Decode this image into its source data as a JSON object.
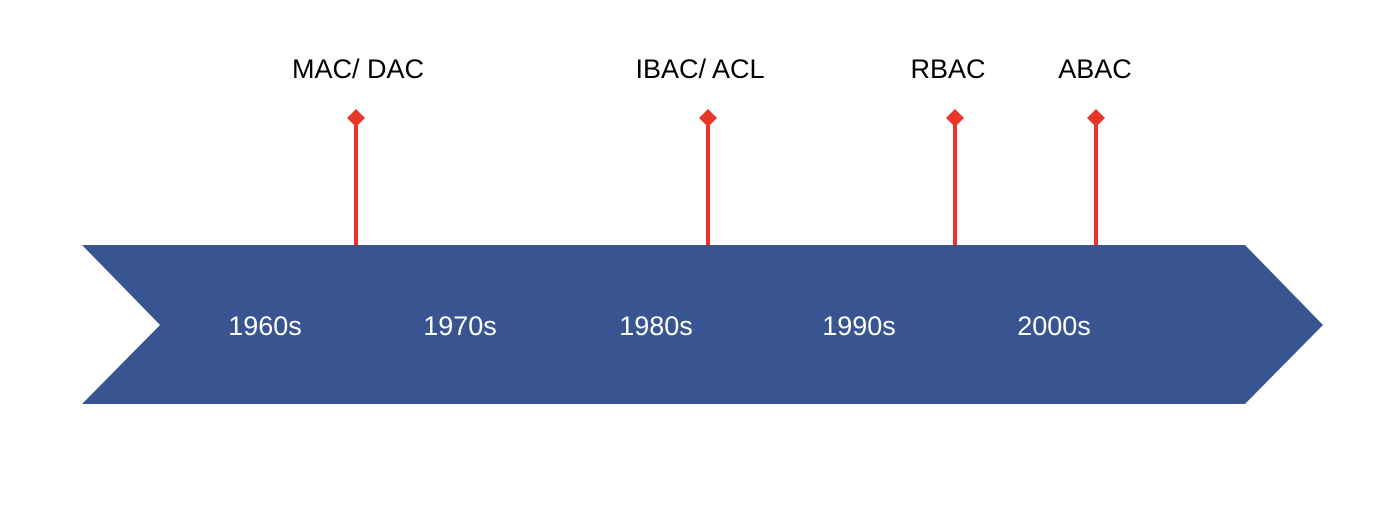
{
  "colors": {
    "arrow_fill": "#385592",
    "marker": "#e8352a",
    "milestone_text": "#000000",
    "period_text": "#ffffff"
  },
  "periods": [
    {
      "label": "1960s"
    },
    {
      "label": "1970s"
    },
    {
      "label": "1980s"
    },
    {
      "label": "1990s"
    },
    {
      "label": "2000s"
    }
  ],
  "milestones": [
    {
      "label": "MAC/ DAC"
    },
    {
      "label": "IBAC/ ACL"
    },
    {
      "label": "RBAC"
    },
    {
      "label": "ABAC"
    }
  ]
}
